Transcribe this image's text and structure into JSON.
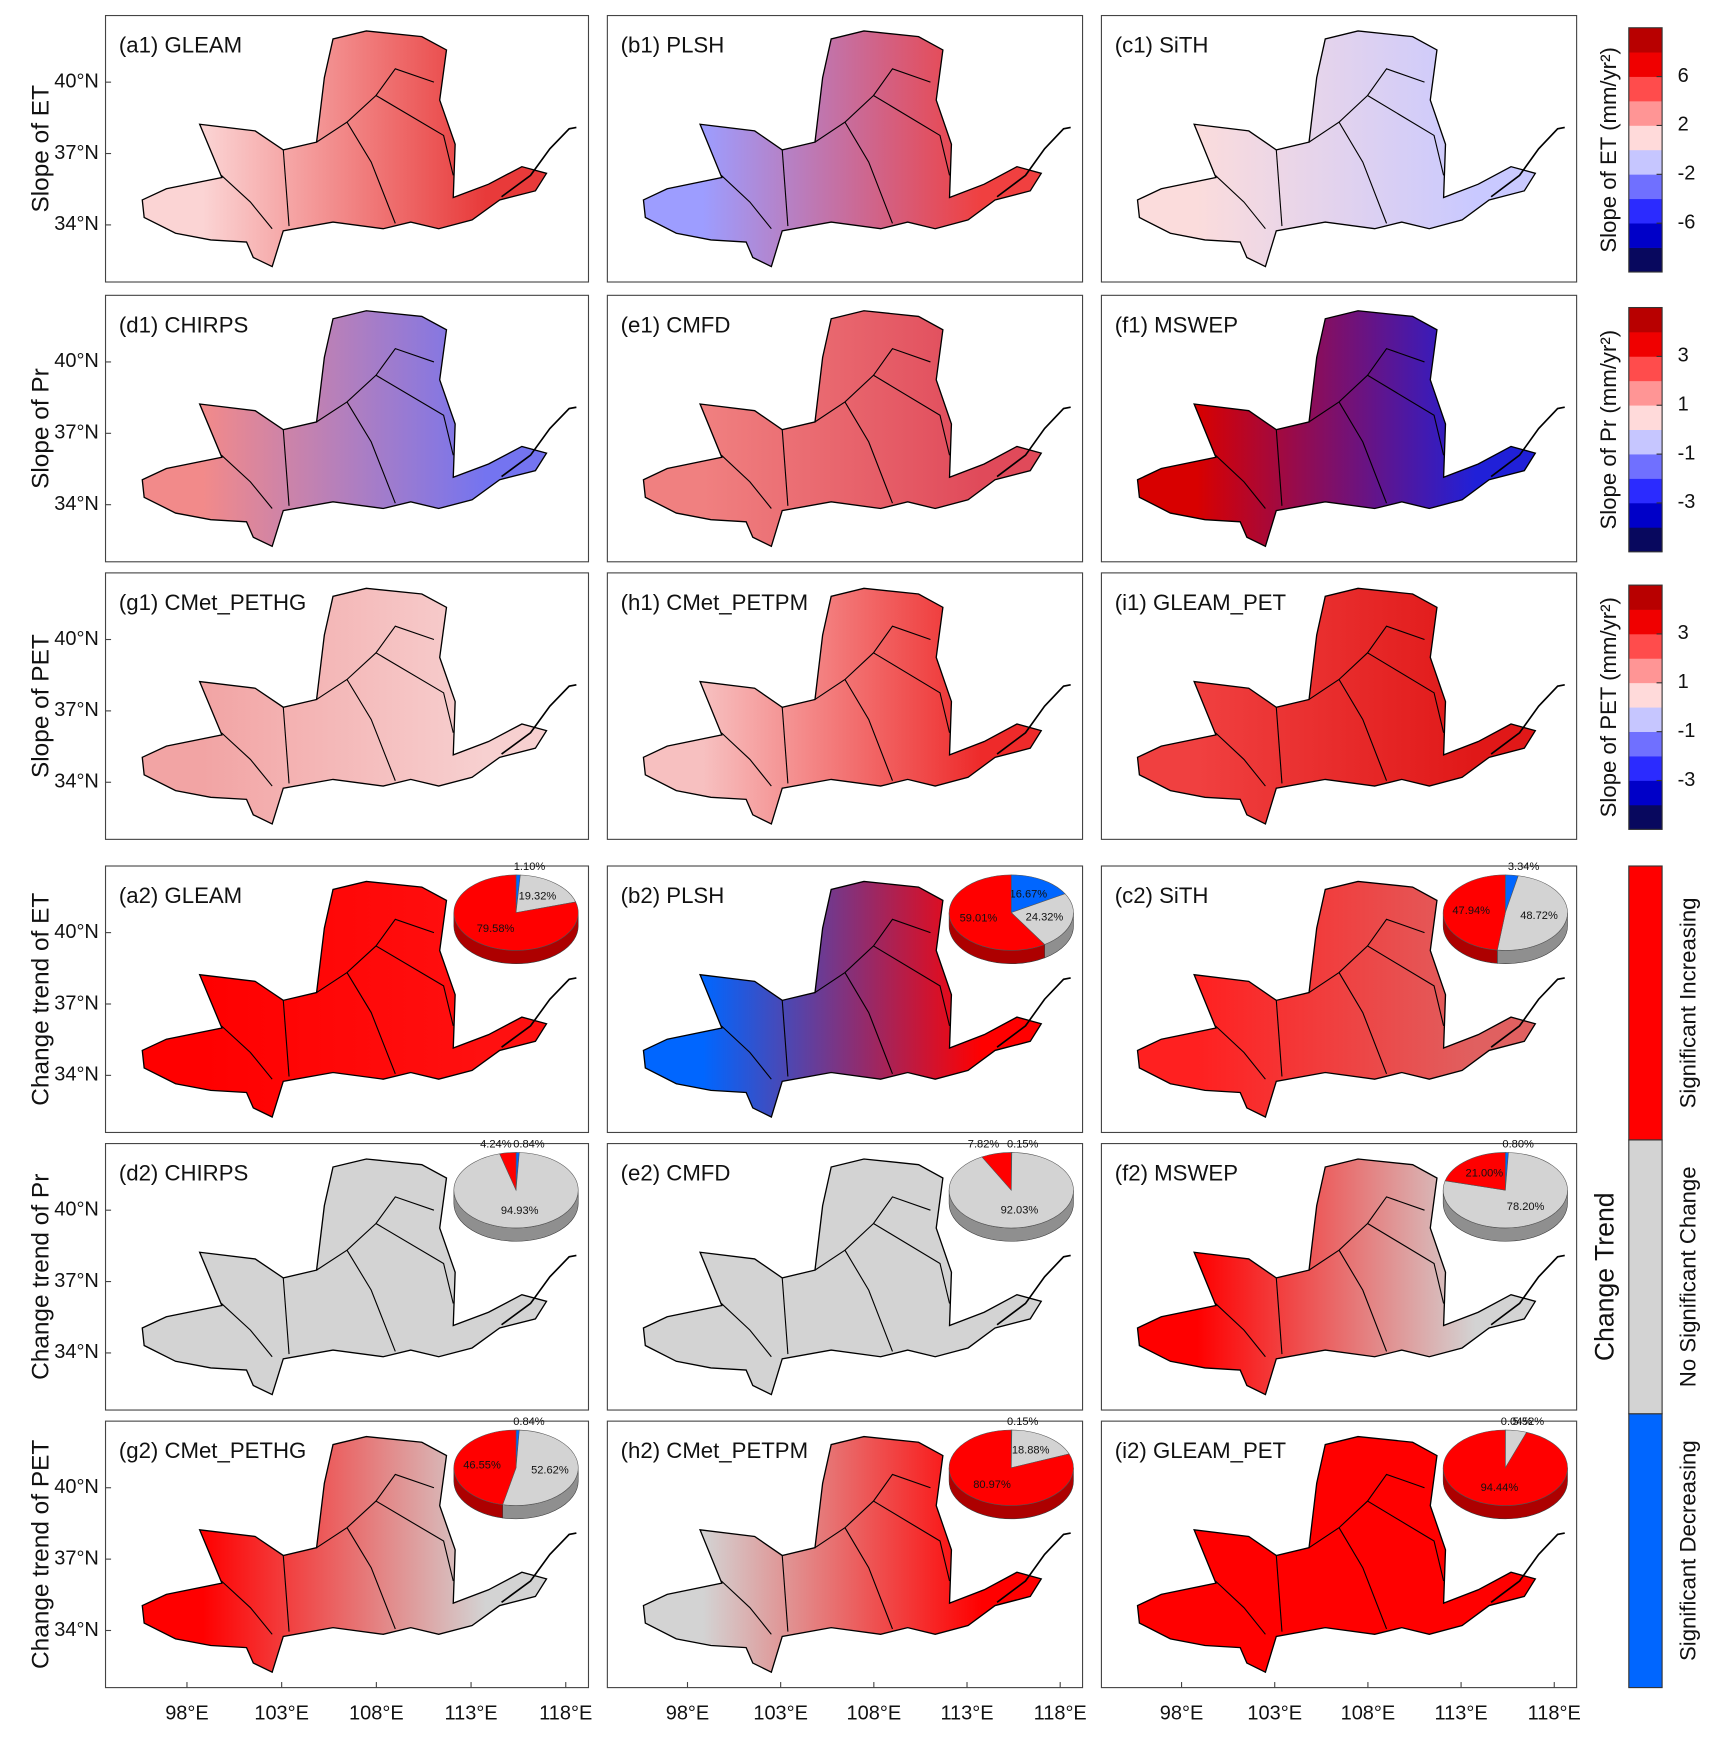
{
  "figure": {
    "xlim": [
      93.7,
      119.2
    ],
    "ylim": [
      31.6,
      42.8
    ],
    "xticks": [
      {
        "value": 98,
        "label": "98°E"
      },
      {
        "value": 103,
        "label": "103°E"
      },
      {
        "value": 108,
        "label": "108°E"
      },
      {
        "value": 113,
        "label": "113°E"
      },
      {
        "value": 118,
        "label": "118°E"
      }
    ],
    "yticks": [
      {
        "value": 34,
        "label": "34°N"
      },
      {
        "value": 37,
        "label": "37°N"
      },
      {
        "value": 40,
        "label": "40°N"
      }
    ],
    "row_labels": [
      "Slope of ET",
      "Slope of Pr",
      "Slope of PET",
      "Change trend of ET",
      "Change trend of Pr",
      "Change trend of PET"
    ],
    "colorbars": [
      {
        "label": "Slope of ET (mm/yr²)",
        "lim": [
          -10,
          10
        ],
        "ticks": [
          -6,
          -2,
          2,
          6
        ]
      },
      {
        "label": "Slope of Pr (mm/yr²)",
        "lim": [
          -5,
          5
        ],
        "ticks": [
          -3,
          -1,
          1,
          3
        ]
      },
      {
        "label": "Slope of PET (mm/yr²)",
        "lim": [
          -5,
          5
        ],
        "ticks": [
          -3,
          -1,
          1,
          3
        ]
      }
    ],
    "colorbar_colors": [
      "#08085e",
      "#0000c8",
      "#2b2bff",
      "#7070ff",
      "#c6c6ff",
      "#ffdada",
      "#ff9595",
      "#ff4c4c",
      "#f00000",
      "#b80000"
    ],
    "trend_legend": {
      "title": "Change Trend",
      "categories": [
        "Significant Decreasing",
        "No Significant Change",
        "Significant Increasing"
      ],
      "colors": [
        "#0066ff",
        "#d3d3d3",
        "#ff0000"
      ]
    },
    "panels": [
      {
        "title": "(a1) GLEAM",
        "fill": [
          "#fbd4d4",
          "#e83a3a"
        ]
      },
      {
        "title": "(b1) PLSH",
        "fill": [
          "#9d9dff",
          "#f04040"
        ]
      },
      {
        "title": "(c1) SiTH",
        "fill": [
          "#fbdcdc",
          "#c9c9ff"
        ]
      },
      {
        "title": "(d1) CHIRPS",
        "fill": [
          "#f28a8a",
          "#7474f0"
        ]
      },
      {
        "title": "(e1) CMFD",
        "fill": [
          "#f08080",
          "#e04a5a"
        ]
      },
      {
        "title": "(f1) MSWEP",
        "fill": [
          "#d80000",
          "#2020d8"
        ]
      },
      {
        "title": "(g1) CMet_PETHG",
        "fill": [
          "#f2a4a4",
          "#f7d0d0"
        ]
      },
      {
        "title": "(h1) CMet_PETPM",
        "fill": [
          "#f7c0c0",
          "#ee2a2a"
        ]
      },
      {
        "title": "(i1) GLEAM_PET",
        "fill": [
          "#f04040",
          "#e01818"
        ]
      },
      {
        "title": "(a2) GLEAM",
        "fill": [
          "#ff0000",
          "#ff1010"
        ],
        "pie": {
          "values": [
            1.1,
            19.32,
            79.58
          ],
          "value_labels": [
            "1.10%",
            "19.32%",
            "79.58%"
          ]
        }
      },
      {
        "title": "(b2) PLSH",
        "fill": [
          "#0066ff",
          "#ff0000"
        ],
        "pie": {
          "values": [
            16.67,
            24.32,
            59.01
          ],
          "value_labels": [
            "16.67%",
            "24.32%",
            "59.01%"
          ]
        }
      },
      {
        "title": "(c2) SiTH",
        "fill": [
          "#ff2020",
          "#e06060"
        ],
        "pie": {
          "values": [
            3.34,
            48.72,
            47.94
          ],
          "value_labels": [
            "3.34%",
            "48.72%",
            "47.94%"
          ]
        }
      },
      {
        "title": "(d2) CHIRPS",
        "fill": [
          "#d3d3d3",
          "#d3d3d3"
        ],
        "pie": {
          "values": [
            0.84,
            94.93,
            4.24
          ],
          "value_labels": [
            "0.84%",
            "94.93%",
            "4.24%"
          ]
        }
      },
      {
        "title": "(e2) CMFD",
        "fill": [
          "#d3d3d3",
          "#d3d3d3"
        ],
        "pie": {
          "values": [
            0.15,
            92.03,
            7.82
          ],
          "value_labels": [
            "0.15%",
            "92.03%",
            "7.82%"
          ]
        }
      },
      {
        "title": "(f2) MSWEP",
        "fill": [
          "#ff0000",
          "#d3d3d3"
        ],
        "pie": {
          "values": [
            0.8,
            78.2,
            21.0
          ],
          "value_labels": [
            "0.80%",
            "78.20%",
            "21.00%"
          ]
        }
      },
      {
        "title": "(g2) CMet_PETHG",
        "fill": [
          "#ff0000",
          "#d3d3d3"
        ],
        "pie": {
          "values": [
            0.84,
            52.62,
            46.55
          ],
          "value_labels": [
            "0.84%",
            "52.62%",
            "46.55%"
          ]
        }
      },
      {
        "title": "(h2) CMet_PETPM",
        "fill": [
          "#d3d3d3",
          "#ff0000"
        ],
        "pie": {
          "values": [
            0.15,
            18.88,
            80.97
          ],
          "value_labels": [
            "0.15%",
            "18.88%",
            "80.97%"
          ]
        }
      },
      {
        "title": "(i2) GLEAM_PET",
        "fill": [
          "#ff0000",
          "#ff0000"
        ],
        "pie": {
          "values": [
            0.04,
            5.52,
            94.44
          ],
          "value_labels": [
            "0.04%",
            "5.52%",
            "94.44%"
          ]
        }
      }
    ]
  }
}
